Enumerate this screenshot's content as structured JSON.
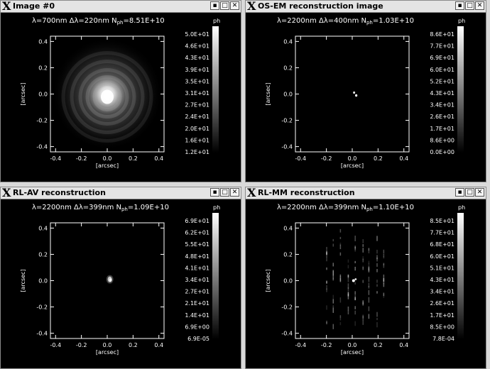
{
  "windows": [
    {
      "title": "Image  #0",
      "header": "λ=700nm  Δλ=220nm  N",
      "header_sub": "ph",
      "header_val": "=8.51E+10",
      "cb_label": "ph",
      "cb_ticks": [
        "5.0E+01",
        "4.6E+01",
        "4.3E+01",
        "3.9E+01",
        "3.5E+01",
        "3.1E+01",
        "2.7E+01",
        "2.4E+01",
        "2.0E+01",
        "1.6E+01",
        "1.2E+01"
      ]
    },
    {
      "title": "OS-EM reconstruction image",
      "header": "λ=2200nm  Δλ=400nm  N",
      "header_sub": "ph",
      "header_val": "=1.03E+10",
      "cb_label": "ph",
      "cb_ticks": [
        "8.6E+01",
        "7.7E+01",
        "6.9E+01",
        "6.0E+01",
        "5.2E+01",
        "4.3E+01",
        "3.4E+01",
        "2.6E+01",
        "1.7E+01",
        "8.6E+00",
        "0.0E+00"
      ]
    },
    {
      "title": "RL-AV reconstruction",
      "header": "λ=2200nm  Δλ=399nm  N",
      "header_sub": "ph",
      "header_val": "=1.09E+10",
      "cb_label": "ph",
      "cb_ticks": [
        "6.9E+01",
        "6.2E+01",
        "5.5E+01",
        "4.8E+01",
        "4.1E+01",
        "3.4E+01",
        "2.7E+01",
        "2.1E+01",
        "1.4E+01",
        "6.9E+00",
        "6.9E-05"
      ]
    },
    {
      "title": "RL-MM reconstruction",
      "header": "λ=2200nm  Δλ=399nm  N",
      "header_sub": "ph",
      "header_val": "=1.10E+10",
      "cb_label": "ph",
      "cb_ticks": [
        "8.5E+01",
        "7.7E+01",
        "6.8E+01",
        "6.0E+01",
        "5.1E+01",
        "4.3E+01",
        "3.4E+01",
        "2.6E+01",
        "1.7E+01",
        "8.5E+00",
        "7.8E-04"
      ]
    }
  ],
  "axes": {
    "xlabel": "[arcsec]",
    "ylabel": "[arcsec]",
    "ticks": [
      "-0.4",
      "-0.2",
      "0.0",
      "0.2",
      "0.4"
    ],
    "yticks": [
      "0.4",
      "0.2",
      "0.0",
      "-0.2",
      "-0.4"
    ]
  },
  "buttons": {
    "min": "▪",
    "max": "□",
    "close": "✕"
  }
}
